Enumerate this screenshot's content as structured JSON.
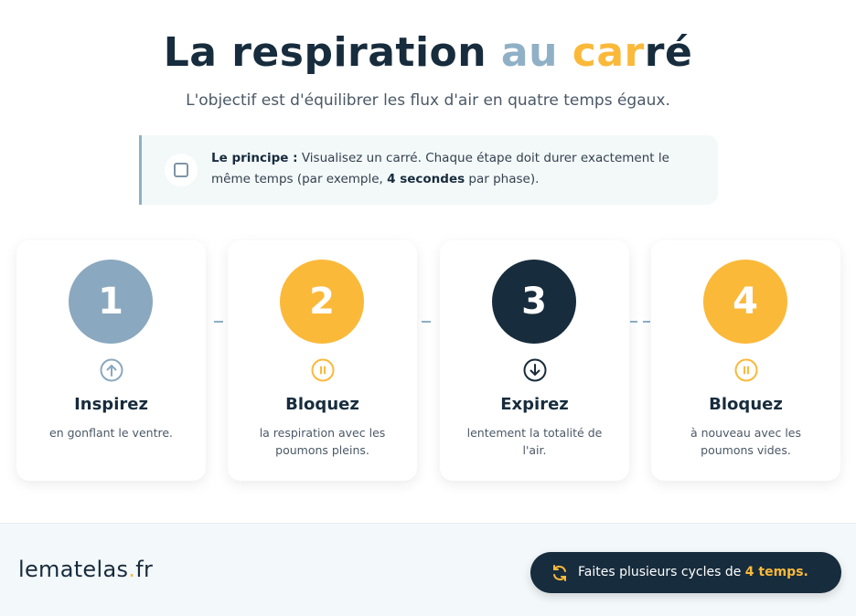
{
  "header": {
    "title_part1": "La respiration ",
    "title_part2": "au ",
    "title_part3": "car",
    "title_part4": "ré",
    "subtitle": "L'objectif est d'équilibrer les flux d'air en quatre temps égaux."
  },
  "callout": {
    "label": "Le principe :",
    "text1": " Visualisez un carré. Chaque étape doit durer exactement le même temps (par exemple, ",
    "bold": "4 secondes",
    "text2": " par phase)."
  },
  "steps": [
    {
      "number": "1",
      "title": "Inspirez",
      "description": "en gonflant le ventre.",
      "icon": "arrow-up-circle-icon",
      "color": "#8aa8bf"
    },
    {
      "number": "2",
      "title": "Bloquez",
      "description": "la respiration avec les poumons pleins.",
      "icon": "pause-circle-icon",
      "color": "#fbb93a"
    },
    {
      "number": "3",
      "title": "Expirez",
      "description": "lentement la totalité de l'air.",
      "icon": "arrow-down-circle-icon",
      "color": "#172c3d"
    },
    {
      "number": "4",
      "title": "Bloquez",
      "description": "à nouveau avec les poumons vides.",
      "icon": "pause-circle-icon",
      "color": "#fbb93a"
    }
  ],
  "footer": {
    "logo_main": "lematelas",
    "logo_dot": ".",
    "logo_tld": "fr",
    "pill_text": "Faites plusieurs cycles de ",
    "pill_bold": "4 temps",
    "pill_end": "."
  },
  "colors": {
    "navy": "#172c3d",
    "blue_gray": "#8fb0c6",
    "yellow": "#fbb93a"
  }
}
